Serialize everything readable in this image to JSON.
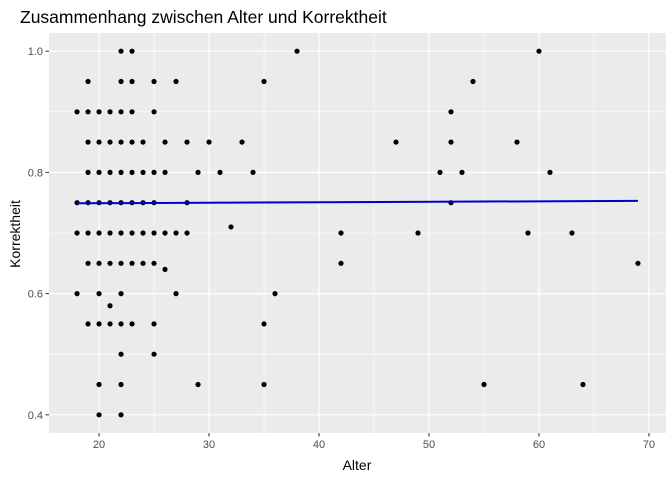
{
  "chart_data": {
    "type": "scatter",
    "title": "Zusammenhang zwischen Alter und Korrektheit",
    "xlabel": "Alter",
    "ylabel": "Korrektheit",
    "xlim": [
      15.45,
      71.55
    ],
    "ylim": [
      0.37,
      1.03
    ],
    "x_ticks": [
      20,
      30,
      40,
      50,
      60,
      70
    ],
    "y_ticks": [
      0.4,
      0.6,
      0.8,
      1.0
    ],
    "x_tick_labels": [
      "20",
      "30",
      "40",
      "50",
      "60",
      "70"
    ],
    "y_tick_labels": [
      "0.4",
      "0.6",
      "0.8",
      "1.0"
    ],
    "grid": true,
    "colors": {
      "panel": "#ebebeb",
      "grid_major": "#ffffff",
      "points": "#000000",
      "trend": "#0000cc"
    },
    "trend_line": {
      "x": [
        18,
        69
      ],
      "y": [
        0.749,
        0.753
      ]
    },
    "points": [
      {
        "x": 18,
        "y": 0.9
      },
      {
        "x": 18,
        "y": 0.75
      },
      {
        "x": 18,
        "y": 0.7
      },
      {
        "x": 18,
        "y": 0.6
      },
      {
        "x": 19,
        "y": 0.95
      },
      {
        "x": 19,
        "y": 0.9
      },
      {
        "x": 19,
        "y": 0.85
      },
      {
        "x": 19,
        "y": 0.8
      },
      {
        "x": 19,
        "y": 0.75
      },
      {
        "x": 19,
        "y": 0.7
      },
      {
        "x": 19,
        "y": 0.65
      },
      {
        "x": 19,
        "y": 0.55
      },
      {
        "x": 20,
        "y": 0.9
      },
      {
        "x": 20,
        "y": 0.85
      },
      {
        "x": 20,
        "y": 0.8
      },
      {
        "x": 20,
        "y": 0.75
      },
      {
        "x": 20,
        "y": 0.7
      },
      {
        "x": 20,
        "y": 0.65
      },
      {
        "x": 20,
        "y": 0.6
      },
      {
        "x": 20,
        "y": 0.55
      },
      {
        "x": 20,
        "y": 0.45
      },
      {
        "x": 20,
        "y": 0.4
      },
      {
        "x": 21,
        "y": 0.9
      },
      {
        "x": 21,
        "y": 0.85
      },
      {
        "x": 21,
        "y": 0.8
      },
      {
        "x": 21,
        "y": 0.75
      },
      {
        "x": 21,
        "y": 0.7
      },
      {
        "x": 21,
        "y": 0.65
      },
      {
        "x": 21,
        "y": 0.58
      },
      {
        "x": 21,
        "y": 0.55
      },
      {
        "x": 22,
        "y": 1.0
      },
      {
        "x": 22,
        "y": 0.95
      },
      {
        "x": 22,
        "y": 0.9
      },
      {
        "x": 22,
        "y": 0.85
      },
      {
        "x": 22,
        "y": 0.8
      },
      {
        "x": 22,
        "y": 0.75
      },
      {
        "x": 22,
        "y": 0.7
      },
      {
        "x": 22,
        "y": 0.65
      },
      {
        "x": 22,
        "y": 0.6
      },
      {
        "x": 22,
        "y": 0.55
      },
      {
        "x": 22,
        "y": 0.5
      },
      {
        "x": 22,
        "y": 0.45
      },
      {
        "x": 22,
        "y": 0.4
      },
      {
        "x": 23,
        "y": 1.0
      },
      {
        "x": 23,
        "y": 0.95
      },
      {
        "x": 23,
        "y": 0.9
      },
      {
        "x": 23,
        "y": 0.85
      },
      {
        "x": 23,
        "y": 0.8
      },
      {
        "x": 23,
        "y": 0.75
      },
      {
        "x": 23,
        "y": 0.7
      },
      {
        "x": 23,
        "y": 0.65
      },
      {
        "x": 23,
        "y": 0.55
      },
      {
        "x": 24,
        "y": 0.85
      },
      {
        "x": 24,
        "y": 0.8
      },
      {
        "x": 24,
        "y": 0.75
      },
      {
        "x": 24,
        "y": 0.7
      },
      {
        "x": 24,
        "y": 0.65
      },
      {
        "x": 25,
        "y": 0.95
      },
      {
        "x": 25,
        "y": 0.9
      },
      {
        "x": 25,
        "y": 0.8
      },
      {
        "x": 25,
        "y": 0.75
      },
      {
        "x": 25,
        "y": 0.7
      },
      {
        "x": 25,
        "y": 0.65
      },
      {
        "x": 25,
        "y": 0.55
      },
      {
        "x": 25,
        "y": 0.5
      },
      {
        "x": 26,
        "y": 0.85
      },
      {
        "x": 26,
        "y": 0.8
      },
      {
        "x": 26,
        "y": 0.7
      },
      {
        "x": 26,
        "y": 0.64
      },
      {
        "x": 27,
        "y": 0.95
      },
      {
        "x": 27,
        "y": 0.7
      },
      {
        "x": 27,
        "y": 0.6
      },
      {
        "x": 28,
        "y": 0.85
      },
      {
        "x": 28,
        "y": 0.75
      },
      {
        "x": 28,
        "y": 0.7
      },
      {
        "x": 29,
        "y": 0.8
      },
      {
        "x": 29,
        "y": 0.45
      },
      {
        "x": 30,
        "y": 0.85
      },
      {
        "x": 31,
        "y": 0.8
      },
      {
        "x": 32,
        "y": 0.71
      },
      {
        "x": 33,
        "y": 0.85
      },
      {
        "x": 34,
        "y": 0.8
      },
      {
        "x": 35,
        "y": 0.95
      },
      {
        "x": 35,
        "y": 0.55
      },
      {
        "x": 35,
        "y": 0.45
      },
      {
        "x": 36,
        "y": 0.6
      },
      {
        "x": 38,
        "y": 1.0
      },
      {
        "x": 42,
        "y": 0.7
      },
      {
        "x": 42,
        "y": 0.65
      },
      {
        "x": 47,
        "y": 0.85
      },
      {
        "x": 49,
        "y": 0.7
      },
      {
        "x": 51,
        "y": 0.8
      },
      {
        "x": 52,
        "y": 0.9
      },
      {
        "x": 52,
        "y": 0.85
      },
      {
        "x": 52,
        "y": 0.75
      },
      {
        "x": 53,
        "y": 0.8
      },
      {
        "x": 54,
        "y": 0.95
      },
      {
        "x": 55,
        "y": 0.45
      },
      {
        "x": 58,
        "y": 0.85
      },
      {
        "x": 59,
        "y": 0.7
      },
      {
        "x": 60,
        "y": 1.0
      },
      {
        "x": 61,
        "y": 0.8
      },
      {
        "x": 63,
        "y": 0.7
      },
      {
        "x": 64,
        "y": 0.45
      },
      {
        "x": 69,
        "y": 0.65
      }
    ]
  }
}
